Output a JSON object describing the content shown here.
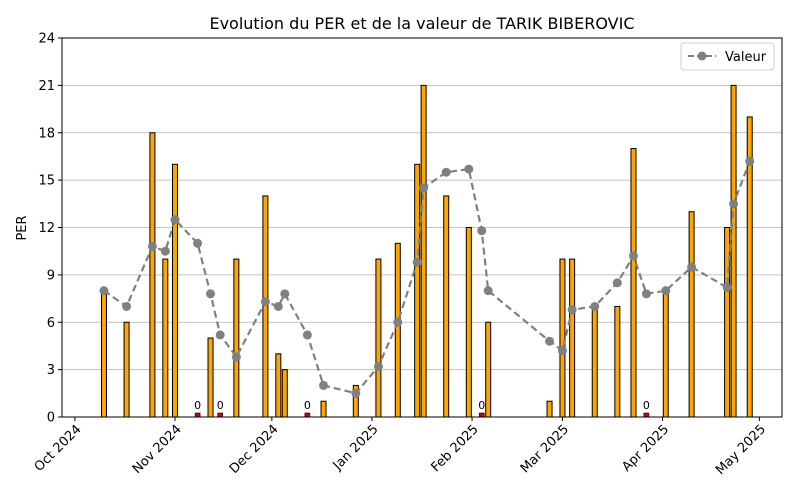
{
  "chart_data": {
    "type": "bar",
    "title": "Evolution du PER et de la valeur de TARIK BIBEROVIC",
    "xlabel": "",
    "ylabel": "PER",
    "ylim": [
      0,
      24
    ],
    "yticks": [
      0,
      3,
      6,
      9,
      12,
      15,
      18,
      21,
      24
    ],
    "xlim": [
      "2024-09-27",
      "2025-05-08"
    ],
    "xticks": [
      {
        "date": "2024-10-01",
        "label": "Oct 2024"
      },
      {
        "date": "2024-11-01",
        "label": "Nov 2024"
      },
      {
        "date": "2024-12-01",
        "label": "Dec 2024"
      },
      {
        "date": "2025-01-01",
        "label": "Jan 2025"
      },
      {
        "date": "2025-02-01",
        "label": "Feb 2025"
      },
      {
        "date": "2025-03-01",
        "label": "Mar 2025"
      },
      {
        "date": "2025-04-01",
        "label": "Apr 2025"
      },
      {
        "date": "2025-05-01",
        "label": "May 2025"
      }
    ],
    "grid": "y",
    "legend_position": "top-right",
    "colors": {
      "bar": "#ffa500",
      "bar_zero": "#cc0000",
      "bar_edge": "#000000",
      "line": "#808080"
    },
    "bars": [
      {
        "date": "2024-10-10",
        "per": 8
      },
      {
        "date": "2024-10-17",
        "per": 6
      },
      {
        "date": "2024-10-25",
        "per": 18
      },
      {
        "date": "2024-10-29",
        "per": 10
      },
      {
        "date": "2024-11-01",
        "per": 16
      },
      {
        "date": "2024-11-08",
        "per": 0,
        "label": "0"
      },
      {
        "date": "2024-11-12",
        "per": 5
      },
      {
        "date": "2024-11-15",
        "per": 0,
        "label": "0"
      },
      {
        "date": "2024-11-20",
        "per": 10
      },
      {
        "date": "2024-11-29",
        "per": 14
      },
      {
        "date": "2024-12-03",
        "per": 4
      },
      {
        "date": "2024-12-05",
        "per": 3
      },
      {
        "date": "2024-12-12",
        "per": 0,
        "label": "0"
      },
      {
        "date": "2024-12-17",
        "per": 1
      },
      {
        "date": "2024-12-27",
        "per": 2
      },
      {
        "date": "2025-01-03",
        "per": 10
      },
      {
        "date": "2025-01-09",
        "per": 11
      },
      {
        "date": "2025-01-15",
        "per": 16
      },
      {
        "date": "2025-01-17",
        "per": 21
      },
      {
        "date": "2025-01-24",
        "per": 14
      },
      {
        "date": "2025-01-31",
        "per": 12
      },
      {
        "date": "2025-02-04",
        "per": 0,
        "label": "0"
      },
      {
        "date": "2025-02-06",
        "per": 6
      },
      {
        "date": "2025-02-25",
        "per": 1
      },
      {
        "date": "2025-03-01",
        "per": 10
      },
      {
        "date": "2025-03-04",
        "per": 10
      },
      {
        "date": "2025-03-11",
        "per": 7
      },
      {
        "date": "2025-03-18",
        "per": 7
      },
      {
        "date": "2025-03-23",
        "per": 17
      },
      {
        "date": "2025-03-27",
        "per": 0,
        "label": "0"
      },
      {
        "date": "2025-04-02",
        "per": 8
      },
      {
        "date": "2025-04-10",
        "per": 13
      },
      {
        "date": "2025-04-21",
        "per": 12
      },
      {
        "date": "2025-04-23",
        "per": 21
      },
      {
        "date": "2025-04-28",
        "per": 19
      }
    ],
    "series": [
      {
        "name": "Valeur",
        "type": "line",
        "style": "dashed",
        "marker": "circle",
        "points": [
          {
            "date": "2024-10-10",
            "value": 8.0
          },
          {
            "date": "2024-10-17",
            "value": 7.0
          },
          {
            "date": "2024-10-25",
            "value": 10.8
          },
          {
            "date": "2024-10-29",
            "value": 10.5
          },
          {
            "date": "2024-11-01",
            "value": 12.5
          },
          {
            "date": "2024-11-08",
            "value": 11.0
          },
          {
            "date": "2024-11-12",
            "value": 7.8
          },
          {
            "date": "2024-11-15",
            "value": 5.2
          },
          {
            "date": "2024-11-20",
            "value": 3.8
          },
          {
            "date": "2024-11-29",
            "value": 7.3
          },
          {
            "date": "2024-12-03",
            "value": 7.0
          },
          {
            "date": "2024-12-05",
            "value": 7.8
          },
          {
            "date": "2024-12-12",
            "value": 5.2
          },
          {
            "date": "2024-12-17",
            "value": 2.0
          },
          {
            "date": "2024-12-27",
            "value": 1.5
          },
          {
            "date": "2025-01-03",
            "value": 3.2
          },
          {
            "date": "2025-01-09",
            "value": 6.0
          },
          {
            "date": "2025-01-15",
            "value": 9.8
          },
          {
            "date": "2025-01-17",
            "value": 14.5
          },
          {
            "date": "2025-01-24",
            "value": 15.5
          },
          {
            "date": "2025-01-31",
            "value": 15.7
          },
          {
            "date": "2025-02-04",
            "value": 11.8
          },
          {
            "date": "2025-02-06",
            "value": 8.0
          },
          {
            "date": "2025-02-25",
            "value": 4.8
          },
          {
            "date": "2025-03-01",
            "value": 4.2
          },
          {
            "date": "2025-03-04",
            "value": 6.8
          },
          {
            "date": "2025-03-11",
            "value": 7.0
          },
          {
            "date": "2025-03-18",
            "value": 8.5
          },
          {
            "date": "2025-03-23",
            "value": 10.2
          },
          {
            "date": "2025-03-27",
            "value": 7.8
          },
          {
            "date": "2025-04-02",
            "value": 8.0
          },
          {
            "date": "2025-04-10",
            "value": 9.5
          },
          {
            "date": "2025-04-21",
            "value": 8.2
          },
          {
            "date": "2025-04-23",
            "value": 13.5
          },
          {
            "date": "2025-04-28",
            "value": 16.2
          }
        ]
      }
    ]
  }
}
